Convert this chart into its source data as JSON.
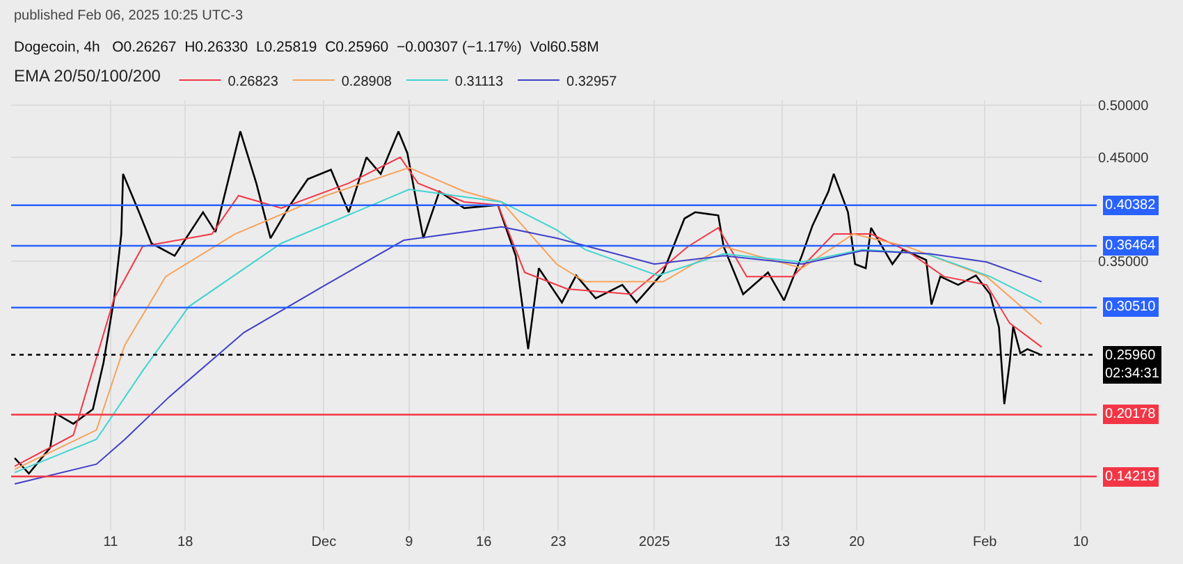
{
  "chart_data": {
    "type": "line",
    "subtitle": "published Feb 06, 2025 10:25 UTC-3",
    "title": "Dogecoin, 4h   O0.26267  H0.26330  L0.25819  C0.25960  −0.00307 (−1.17%)  Vol60.58M",
    "legend_title": "EMA 20/50/100/200",
    "legend": "top left",
    "grid": true,
    "xlim": [
      "2024-11-01T16:00",
      "2025-02-11T12:00"
    ],
    "xticks": [
      {
        "value": "2024-11-11",
        "label": "11"
      },
      {
        "value": "2024-11-18",
        "label": "18"
      },
      {
        "value": "2024-12-01",
        "label": "Dec"
      },
      {
        "value": "2024-12-09",
        "label": "9"
      },
      {
        "value": "2024-12-16",
        "label": "16"
      },
      {
        "value": "2024-12-23",
        "label": "23"
      },
      {
        "value": "2025-01-01",
        "label": "2025"
      },
      {
        "value": "2025-01-13",
        "label": "13"
      },
      {
        "value": "2025-01-20",
        "label": "20"
      },
      {
        "value": "2025-02-01",
        "label": "Feb"
      },
      {
        "value": "2025-02-10",
        "label": "10"
      }
    ],
    "ylim": [
      0.09,
      0.505
    ],
    "yticks": [
      {
        "value": 0.35,
        "label": "0.35000"
      },
      {
        "value": 0.45,
        "label": "0.45000"
      },
      {
        "value": 0.5,
        "label": "0.50000"
      }
    ],
    "series": [
      {
        "color": "#000000",
        "x": [
          "2024-11-02T00:00",
          "2024-11-03T08:00",
          "2024-11-05T08:00",
          "2024-11-05T20:00",
          "2024-11-07T12:00",
          "2024-11-09T08:00",
          "2024-11-10T08:00",
          "2024-11-11T08:00",
          "2024-11-12T00:00",
          "2024-11-12T04:00",
          "2024-11-13T16:00",
          "2024-11-14T20:00",
          "2024-11-17T00:00",
          "2024-11-19T16:00",
          "2024-11-20T20:00",
          "2024-11-23T04:00",
          "2024-11-24T16:00",
          "2024-11-26T00:00",
          "2024-11-27T20:00",
          "2024-11-29T12:00",
          "2024-12-01T16:00",
          "2024-12-03T08:00",
          "2024-12-05T00:00",
          "2024-12-06T08:00",
          "2024-12-08T00:00",
          "2024-12-08T20:00",
          "2024-12-10T08:00",
          "2024-12-11T20:00",
          "2024-12-14T04:00",
          "2024-12-17T08:00",
          "2024-12-19T00:00",
          "2024-12-20T04:00",
          "2024-12-21T04:00",
          "2024-12-23T08:00",
          "2024-12-24T16:00",
          "2024-12-26T12:00",
          "2024-12-29T00:00",
          "2024-12-30T08:00",
          "2025-01-01T20:00",
          "2025-01-03T20:00",
          "2025-01-04T20:00",
          "2025-01-07T00:00",
          "2025-01-07T12:00",
          "2025-01-09T08:00",
          "2025-01-11T16:00",
          "2025-01-13T04:00",
          "2025-01-14T20:00",
          "2025-01-15T20:00",
          "2025-01-17T08:00",
          "2025-01-17T20:00",
          "2025-01-19T04:00",
          "2025-01-19T20:00",
          "2025-01-20T20:00",
          "2025-01-21T08:00",
          "2025-01-23T08:00",
          "2025-01-24T08:00",
          "2025-01-26T12:00",
          "2025-01-27T00:00",
          "2025-01-27T20:00",
          "2025-01-29T12:00",
          "2025-01-31T04:00",
          "2025-02-01T12:00",
          "2025-02-02T08:00",
          "2025-02-02T20:00",
          "2025-02-03T08:00",
          "2025-02-03T16:00",
          "2025-02-04T08:00",
          "2025-02-05T00:00",
          "2025-02-06T04:00"
        ],
        "values": [
          0.16,
          0.145,
          0.17,
          0.203,
          0.193,
          0.207,
          0.252,
          0.314,
          0.376,
          0.434,
          0.397,
          0.367,
          0.355,
          0.397,
          0.378,
          0.475,
          0.425,
          0.372,
          0.404,
          0.429,
          0.438,
          0.397,
          0.45,
          0.434,
          0.475,
          0.454,
          0.372,
          0.417,
          0.401,
          0.404,
          0.355,
          0.265,
          0.343,
          0.31,
          0.336,
          0.314,
          0.327,
          0.31,
          0.339,
          0.391,
          0.397,
          0.394,
          0.364,
          0.318,
          0.339,
          0.312,
          0.355,
          0.384,
          0.417,
          0.434,
          0.397,
          0.347,
          0.343,
          0.382,
          0.347,
          0.361,
          0.351,
          0.308,
          0.335,
          0.327,
          0.336,
          0.318,
          0.286,
          0.212,
          0.252,
          0.287,
          0.261,
          0.265,
          0.26
        ]
      },
      {
        "name": "0.26823",
        "color": "#f23645",
        "x": [
          "2024-11-02T00:00",
          "2024-11-07T12:00",
          "2024-11-11T08:00",
          "2024-11-14T00:00",
          "2024-11-20T12:00",
          "2024-11-23T00:00",
          "2024-11-27T00:00",
          "2024-12-03T08:00",
          "2024-12-08T04:00",
          "2024-12-09T20:00",
          "2024-12-14T04:00",
          "2024-12-17T08:00",
          "2024-12-19T20:00",
          "2024-12-23T20:00",
          "2024-12-29T20:00",
          "2025-01-04T04:00",
          "2025-01-07T00:00",
          "2025-01-09T16:00",
          "2025-01-14T00:00",
          "2025-01-17T20:00",
          "2025-01-21T08:00",
          "2025-01-24T16:00",
          "2025-01-28T04:00",
          "2025-02-01T04:00",
          "2025-02-03T08:00",
          "2025-02-06T08:00"
        ],
        "values": [
          0.152,
          0.182,
          0.314,
          0.364,
          0.376,
          0.413,
          0.401,
          0.425,
          0.45,
          0.425,
          0.407,
          0.404,
          0.339,
          0.323,
          0.318,
          0.364,
          0.382,
          0.335,
          0.335,
          0.376,
          0.376,
          0.36,
          0.335,
          0.327,
          0.29,
          0.267
        ]
      },
      {
        "name": "0.28908",
        "color": "#f7a35c",
        "x": [
          "2024-11-02T00:00",
          "2024-11-09T16:00",
          "2024-11-12T08:00",
          "2024-11-16T04:00",
          "2024-11-22T16:00",
          "2024-12-01T04:00",
          "2024-12-09T00:00",
          "2024-12-14T04:00",
          "2024-12-17T16:00",
          "2024-12-22T20:00",
          "2024-12-25T12:00",
          "2025-01-01T20:00",
          "2025-01-07T12:00",
          "2025-01-14T20:00",
          "2025-01-19T16:00",
          "2025-01-24T16:00",
          "2025-02-01T04:00",
          "2025-02-06T08:00"
        ],
        "values": [
          0.149,
          0.187,
          0.269,
          0.335,
          0.376,
          0.413,
          0.44,
          0.417,
          0.407,
          0.347,
          0.33,
          0.33,
          0.364,
          0.343,
          0.376,
          0.364,
          0.335,
          0.289
        ]
      },
      {
        "name": "0.31113",
        "color": "#40d4d0",
        "x": [
          "2024-11-02T00:00",
          "2024-11-09T16:00",
          "2024-11-14T00:00",
          "2024-11-18T08:00",
          "2024-11-27T00:00",
          "2024-12-09T00:00",
          "2024-12-17T16:00",
          "2024-12-22T20:00",
          "2024-12-25T12:00",
          "2025-01-01T08:00",
          "2025-01-07T12:00",
          "2025-01-14T20:00",
          "2025-01-20T12:00",
          "2025-01-26T12:00",
          "2025-02-01T12:00",
          "2025-02-06T08:00"
        ],
        "values": [
          0.146,
          0.178,
          0.244,
          0.306,
          0.367,
          0.419,
          0.407,
          0.38,
          0.361,
          0.336,
          0.357,
          0.349,
          0.361,
          0.357,
          0.335,
          0.31
        ]
      },
      {
        "name": "0.32957",
        "color": "#3f3fc8",
        "x": [
          "2024-11-02T00:00",
          "2024-11-09T16:00",
          "2024-11-12T08:00",
          "2024-11-16T12:00",
          "2024-11-23T12:00",
          "2024-12-01T04:00",
          "2024-12-08T12:00",
          "2024-12-17T16:00",
          "2024-12-22T20:00",
          "2025-01-01T00:00",
          "2025-01-07T12:00",
          "2025-01-14T20:00",
          "2025-01-20T12:00",
          "2025-01-26T20:00",
          "2025-02-01T04:00",
          "2025-02-06T08:00"
        ],
        "values": [
          0.135,
          0.154,
          0.178,
          0.219,
          0.281,
          0.327,
          0.37,
          0.383,
          0.372,
          0.347,
          0.355,
          0.347,
          0.36,
          0.357,
          0.349,
          0.33
        ]
      }
    ],
    "ref_lines": [
      {
        "axis": "y",
        "value": 0.40382,
        "label": "0.40382",
        "color": "#2962ff",
        "line_style": "solid"
      },
      {
        "axis": "y",
        "value": 0.36464,
        "label": "0.36464",
        "color": "#2962ff",
        "line_style": "solid"
      },
      {
        "axis": "y",
        "value": 0.3051,
        "label": "0.30510",
        "color": "#2962ff",
        "line_style": "solid"
      },
      {
        "axis": "y",
        "value": 0.2596,
        "label": "0.25960\n02:34:31",
        "color": "#000000",
        "line_style": "dotted"
      },
      {
        "axis": "y",
        "value": 0.20178,
        "label": "0.20178",
        "color": "#f23645",
        "line_style": "solid"
      },
      {
        "axis": "y",
        "value": 0.14219,
        "label": "0.14219",
        "color": "#f23645",
        "line_style": "solid"
      }
    ]
  }
}
